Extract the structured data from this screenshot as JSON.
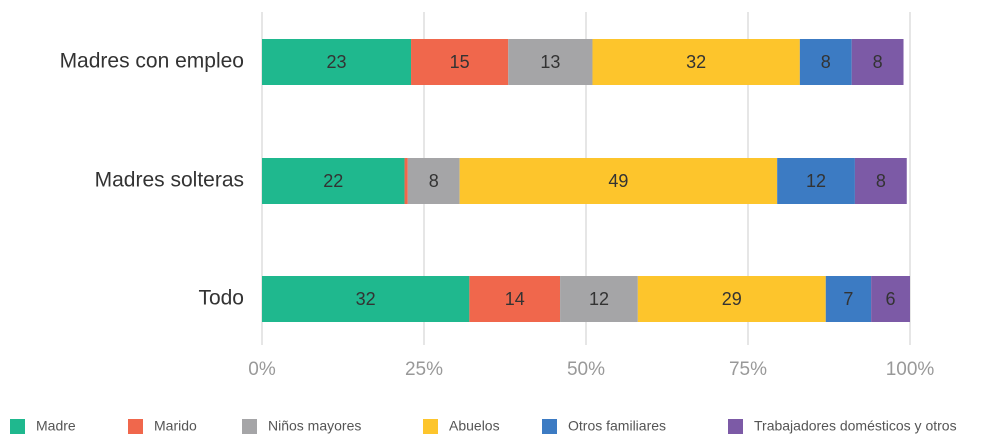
{
  "chart_data": {
    "type": "bar",
    "orientation": "horizontal",
    "stacked": true,
    "categories": [
      "Madres con empleo",
      "Madres solteras",
      "Todo"
    ],
    "series": [
      {
        "name": "Madre",
        "color": "#1fb88e",
        "values": [
          23,
          22,
          32
        ]
      },
      {
        "name": "Marido",
        "color": "#f0674c",
        "values": [
          15,
          0.5,
          14
        ]
      },
      {
        "name": "Niños mayores",
        "color": "#a5a5a7",
        "values": [
          13,
          8,
          12
        ]
      },
      {
        "name": "Abuelos",
        "color": "#fdc52c",
        "values": [
          32,
          49,
          29
        ]
      },
      {
        "name": "Otros familiares",
        "color": "#3c7bc3",
        "values": [
          8,
          12,
          7
        ]
      },
      {
        "name": "Trabajadores domésticos y otros",
        "color": "#7c5aa6",
        "values": [
          8,
          8,
          6
        ]
      }
    ],
    "xlim": [
      0,
      100
    ],
    "xticks": [
      {
        "value": 0,
        "label": "0%"
      },
      {
        "value": 25,
        "label": "25%"
      },
      {
        "value": 50,
        "label": "50%"
      },
      {
        "value": 75,
        "label": "75%"
      },
      {
        "value": 100,
        "label": "100%"
      }
    ],
    "grid": true,
    "legend": "bottom"
  }
}
